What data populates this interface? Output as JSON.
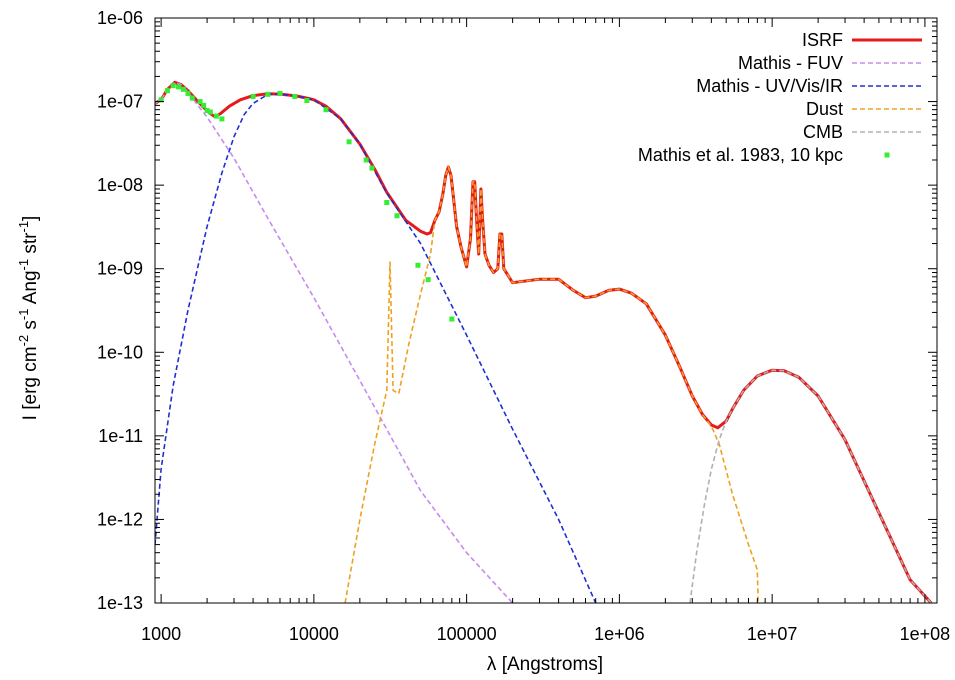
{
  "chart_data": {
    "type": "line",
    "xlabel": "λ [Angstroms]",
    "ylabel_parts": {
      "base": "I [erg cm",
      "exp1": "-2",
      "mid1": " s",
      "exp2": "-1",
      "mid2": " Ang",
      "exp3": "-1",
      "mid3": " str",
      "exp4": "-1",
      "end": "]"
    },
    "xscale": "log",
    "yscale": "log",
    "xlim": [
      912,
      120000000
    ],
    "ylim": [
      1e-13,
      1e-06
    ],
    "xticks": [
      {
        "value": 1000,
        "label": "1000"
      },
      {
        "value": 10000,
        "label": "10000"
      },
      {
        "value": 100000,
        "label": "100000"
      },
      {
        "value": 1000000,
        "label": "1e+06"
      },
      {
        "value": 10000000,
        "label": "1e+07"
      },
      {
        "value": 100000000,
        "label": "1e+08"
      }
    ],
    "yticks": [
      {
        "value": 1e-06,
        "label": "1e-06"
      },
      {
        "value": 1e-07,
        "label": "1e-07"
      },
      {
        "value": 1e-08,
        "label": "1e-08"
      },
      {
        "value": 1e-09,
        "label": "1e-09"
      },
      {
        "value": 1e-10,
        "label": "1e-10"
      },
      {
        "value": 1e-11,
        "label": "1e-11"
      },
      {
        "value": 1e-12,
        "label": "1e-12"
      },
      {
        "value": 1e-13,
        "label": "1e-13"
      }
    ],
    "legend_position": "top-right",
    "grid": false,
    "series": [
      {
        "name": "ISRF",
        "color": "#e41a1c",
        "style": "solid",
        "points": [
          [
            912,
            9.5e-08
          ],
          [
            1000,
            1.05e-07
          ],
          [
            1100,
            1.4e-07
          ],
          [
            1230,
            1.7e-07
          ],
          [
            1350,
            1.6e-07
          ],
          [
            1500,
            1.35e-07
          ],
          [
            1700,
            1.05e-07
          ],
          [
            1900,
            8.5e-08
          ],
          [
            2100,
            7.2e-08
          ],
          [
            2250,
            6.6e-08
          ],
          [
            2450,
            7.2e-08
          ],
          [
            2800,
            8.8e-08
          ],
          [
            3300,
            1.05e-07
          ],
          [
            4000,
            1.18e-07
          ],
          [
            5000,
            1.24e-07
          ],
          [
            6000,
            1.23e-07
          ],
          [
            7000,
            1.19e-07
          ],
          [
            8000,
            1.15e-07
          ],
          [
            9000,
            1.1e-07
          ],
          [
            10000,
            1.05e-07
          ],
          [
            12000,
            8.8e-08
          ],
          [
            15000,
            6.2e-08
          ],
          [
            20000,
            3.1e-08
          ],
          [
            25000,
            1.55e-08
          ],
          [
            30000,
            8.2e-09
          ],
          [
            40000,
            3.8e-09
          ],
          [
            50000,
            2.8e-09
          ],
          [
            55000,
            2.6e-09
          ],
          [
            58000,
            2.7e-09
          ],
          [
            62000,
            3.8e-09
          ],
          [
            66000,
            4.8e-09
          ],
          [
            70000,
            8e-09
          ],
          [
            73000,
            1.3e-08
          ],
          [
            76000,
            1.65e-08
          ],
          [
            79000,
            1.3e-08
          ],
          [
            82000,
            7e-09
          ],
          [
            86000,
            3.2e-09
          ],
          [
            92000,
            1.8e-09
          ],
          [
            100000,
            1.05e-09
          ],
          [
            106000,
            2.3e-09
          ],
          [
            110000,
            1.1e-08
          ],
          [
            113000,
            1.1e-08
          ],
          [
            116000,
            4e-09
          ],
          [
            120000,
            1.5e-09
          ],
          [
            124000,
            9e-09
          ],
          [
            127000,
            4e-09
          ],
          [
            132000,
            1.5e-09
          ],
          [
            140000,
            1.1e-09
          ],
          [
            150000,
            9e-10
          ],
          [
            160000,
            1e-09
          ],
          [
            165000,
            2.6e-09
          ],
          [
            170000,
            2.6e-09
          ],
          [
            175000,
            1e-09
          ],
          [
            200000,
            6.8e-10
          ],
          [
            300000,
            7.5e-10
          ],
          [
            400000,
            7.5e-10
          ],
          [
            500000,
            5.5e-10
          ],
          [
            600000,
            4.5e-10
          ],
          [
            700000,
            4.7e-10
          ],
          [
            850000,
            5.5e-10
          ],
          [
            1000000,
            5.7e-10
          ],
          [
            1200000,
            5.1e-10
          ],
          [
            1500000,
            3.8e-10
          ],
          [
            2000000,
            1.6e-10
          ],
          [
            2500000,
            6.5e-11
          ],
          [
            3000000,
            3e-11
          ],
          [
            3500000,
            1.8e-11
          ],
          [
            4000000,
            1.35e-11
          ],
          [
            4400000,
            1.25e-11
          ],
          [
            5000000,
            1.5e-11
          ],
          [
            5500000,
            2.1e-11
          ],
          [
            6500000,
            3.5e-11
          ],
          [
            8000000,
            5.2e-11
          ],
          [
            10000000,
            6.1e-11
          ],
          [
            12000000,
            6e-11
          ],
          [
            15000000,
            5e-11
          ],
          [
            20000000,
            3e-11
          ],
          [
            30000000,
            9e-12
          ],
          [
            50000000,
            1.2e-12
          ],
          [
            80000000,
            1.9e-13
          ],
          [
            110000000,
            1e-13
          ]
        ]
      },
      {
        "name": "Mathis - FUV",
        "color": "#c58bf0",
        "style": "dashed",
        "points": [
          [
            912,
            9.5e-08
          ],
          [
            1000,
            1.05e-07
          ],
          [
            1100,
            1.4e-07
          ],
          [
            1230,
            1.7e-07
          ],
          [
            1350,
            1.6e-07
          ],
          [
            1500,
            1.3e-07
          ],
          [
            1700,
            9.5e-08
          ],
          [
            2000,
            6.5e-08
          ],
          [
            3000,
            2.1e-08
          ],
          [
            5000,
            4e-09
          ],
          [
            10000,
            4.5e-10
          ],
          [
            20000,
            4.6e-11
          ],
          [
            50000,
            2.2e-12
          ],
          [
            100000,
            4e-13
          ],
          [
            200000,
            1e-13
          ]
        ]
      },
      {
        "name": "Mathis - UV/Vis/IR",
        "color": "#1f2fd6",
        "style": "dashed",
        "points": [
          [
            912,
            5e-13
          ],
          [
            1000,
            4e-12
          ],
          [
            1200,
            4e-11
          ],
          [
            1500,
            3.2e-10
          ],
          [
            2000,
            3.2e-09
          ],
          [
            2500,
            1.4e-08
          ],
          [
            3000,
            3.8e-08
          ],
          [
            3500,
            7e-08
          ],
          [
            4000,
            9.5e-08
          ],
          [
            5000,
            1.22e-07
          ],
          [
            6000,
            1.23e-07
          ],
          [
            7000,
            1.19e-07
          ],
          [
            8000,
            1.15e-07
          ],
          [
            10000,
            1.05e-07
          ],
          [
            15000,
            6.2e-08
          ],
          [
            20000,
            3.1e-08
          ],
          [
            30000,
            8e-09
          ],
          [
            50000,
            2e-09
          ],
          [
            100000,
            1.6e-10
          ],
          [
            200000,
            1.2e-11
          ],
          [
            400000,
            1e-12
          ],
          [
            700000,
            1e-13
          ]
        ]
      },
      {
        "name": "Dust",
        "color": "#f0a020",
        "style": "dashed",
        "points": [
          [
            16000,
            1e-13
          ],
          [
            20000,
            1e-12
          ],
          [
            25000,
            8e-12
          ],
          [
            30000,
            3.5e-11
          ],
          [
            31500,
            1.2e-09
          ],
          [
            33000,
            3.5e-11
          ],
          [
            36000,
            3.2e-11
          ],
          [
            42000,
            1.3e-10
          ],
          [
            50000,
            5e-10
          ],
          [
            58000,
            1.5e-09
          ],
          [
            62000,
            3.8e-09
          ],
          [
            66000,
            4.8e-09
          ],
          [
            70000,
            8e-09
          ],
          [
            73000,
            1.3e-08
          ],
          [
            76000,
            1.65e-08
          ],
          [
            79000,
            1.3e-08
          ],
          [
            82000,
            7e-09
          ],
          [
            86000,
            3.2e-09
          ],
          [
            92000,
            1.8e-09
          ],
          [
            100000,
            1.05e-09
          ],
          [
            106000,
            2.3e-09
          ],
          [
            110000,
            1.1e-08
          ],
          [
            113000,
            1.1e-08
          ],
          [
            116000,
            4e-09
          ],
          [
            120000,
            1.5e-09
          ],
          [
            124000,
            9e-09
          ],
          [
            127000,
            4e-09
          ],
          [
            132000,
            1.5e-09
          ],
          [
            140000,
            1.1e-09
          ],
          [
            150000,
            9e-10
          ],
          [
            160000,
            1e-09
          ],
          [
            165000,
            2.6e-09
          ],
          [
            170000,
            2.6e-09
          ],
          [
            175000,
            1e-09
          ],
          [
            200000,
            6.8e-10
          ],
          [
            300000,
            7.5e-10
          ],
          [
            400000,
            7.5e-10
          ],
          [
            500000,
            5.5e-10
          ],
          [
            600000,
            4.5e-10
          ],
          [
            700000,
            4.7e-10
          ],
          [
            850000,
            5.5e-10
          ],
          [
            1000000,
            5.7e-10
          ],
          [
            1200000,
            5.1e-10
          ],
          [
            1500000,
            3.8e-10
          ],
          [
            2000000,
            1.6e-10
          ],
          [
            2500000,
            6.5e-11
          ],
          [
            3000000,
            3e-11
          ],
          [
            3500000,
            1.8e-11
          ],
          [
            4000000,
            1.3e-11
          ],
          [
            4500000,
            8e-12
          ],
          [
            5500000,
            2e-12
          ],
          [
            7000000,
            5e-13
          ],
          [
            8000000,
            2.5e-13
          ],
          [
            8100000,
            1e-13
          ]
        ]
      },
      {
        "name": "CMB",
        "color": "#b0b0b0",
        "style": "dashed",
        "points": [
          [
            2900000,
            1e-13
          ],
          [
            3200000,
            4e-13
          ],
          [
            3600000,
            1.5e-12
          ],
          [
            4000000,
            4e-12
          ],
          [
            4500000,
            9e-12
          ],
          [
            5000000,
            1.5e-11
          ],
          [
            5500000,
            2.1e-11
          ],
          [
            6500000,
            3.5e-11
          ],
          [
            8000000,
            5.2e-11
          ],
          [
            10000000,
            6.1e-11
          ],
          [
            12000000,
            6e-11
          ],
          [
            15000000,
            5e-11
          ],
          [
            20000000,
            3e-11
          ],
          [
            30000000,
            9e-12
          ],
          [
            50000000,
            1.2e-12
          ],
          [
            80000000,
            1.9e-13
          ],
          [
            110000000,
            1e-13
          ]
        ]
      },
      {
        "name": "Mathis et al. 1983, 10 kpc",
        "color": "#33ee33",
        "style": "points",
        "points": [
          [
            1000,
            1.05e-07
          ],
          [
            1100,
            1.35e-07
          ],
          [
            1200,
            1.55e-07
          ],
          [
            1300,
            1.5e-07
          ],
          [
            1400,
            1.4e-07
          ],
          [
            1500,
            1.25e-07
          ],
          [
            1600,
            1.1e-07
          ],
          [
            1800,
            1e-07
          ],
          [
            1900,
            9e-08
          ],
          [
            2000,
            7.8e-08
          ],
          [
            2100,
            7.5e-08
          ],
          [
            2300,
            6.7e-08
          ],
          [
            2500,
            6.2e-08
          ],
          [
            4000,
            1.15e-07
          ],
          [
            5000,
            1.22e-07
          ],
          [
            6000,
            1.25e-07
          ],
          [
            7500,
            1.15e-07
          ],
          [
            9000,
            1.03e-07
          ],
          [
            12000,
            8e-08
          ],
          [
            17000,
            3.3e-08
          ],
          [
            22000,
            2e-08
          ],
          [
            24000,
            1.6e-08
          ],
          [
            30000,
            6.2e-09
          ],
          [
            35000,
            4.3e-09
          ],
          [
            48000,
            1.1e-09
          ],
          [
            56000,
            7.4e-10
          ],
          [
            80000,
            2.5e-10
          ]
        ]
      }
    ]
  }
}
